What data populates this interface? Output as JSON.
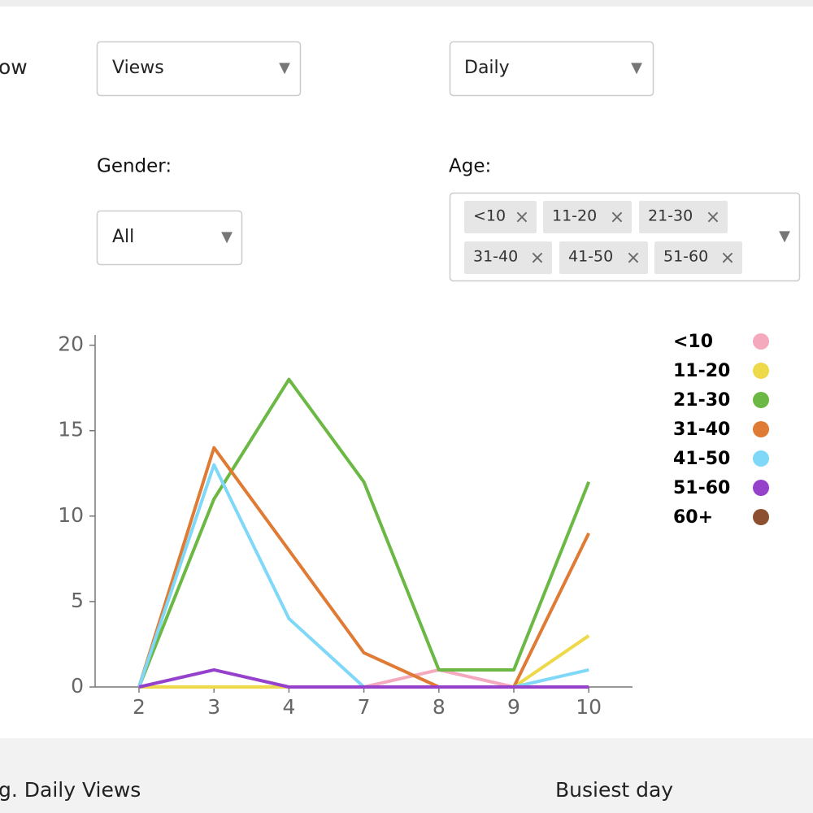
{
  "show_label": "ow",
  "metric_select": "Views",
  "period_select": "Daily",
  "gender_label": "Gender:",
  "gender_select": "All",
  "age_label": "Age:",
  "age_chips": [
    "<10",
    "11-20",
    "21-30",
    "31-40",
    "41-50",
    "51-60"
  ],
  "chip_remove": "×",
  "dropdown_arrow": "▼",
  "chart_data": {
    "type": "line",
    "categories": [
      "2",
      "3",
      "4",
      "7",
      "8",
      "9",
      "10"
    ],
    "ylim": [
      0,
      20.6
    ],
    "yticks": [
      0,
      5,
      10,
      15,
      20
    ],
    "series": [
      {
        "name": "<10",
        "color": "#f4a9bd",
        "values": [
          0,
          0,
          0,
          0,
          1,
          0,
          0
        ]
      },
      {
        "name": "11-20",
        "color": "#eed94a",
        "values": [
          0,
          0,
          0,
          0,
          0,
          0,
          3
        ]
      },
      {
        "name": "21-30",
        "color": "#6bb944",
        "values": [
          0,
          11,
          18,
          12,
          1,
          1,
          12
        ]
      },
      {
        "name": "31-40",
        "color": "#e07b35",
        "values": [
          0,
          14,
          8,
          2,
          0,
          0,
          9
        ]
      },
      {
        "name": "41-50",
        "color": "#7fd8f7",
        "values": [
          0,
          13,
          4,
          0,
          0,
          0,
          1
        ]
      },
      {
        "name": "51-60",
        "color": "#9641cc",
        "values": [
          0,
          1,
          0,
          0,
          0,
          0,
          0
        ]
      },
      {
        "name": "60+",
        "color": "#8c5030",
        "values": [
          null,
          null,
          null,
          null,
          null,
          null,
          null
        ]
      }
    ]
  },
  "footer": [
    "g. Daily Views",
    "Busiest day"
  ]
}
